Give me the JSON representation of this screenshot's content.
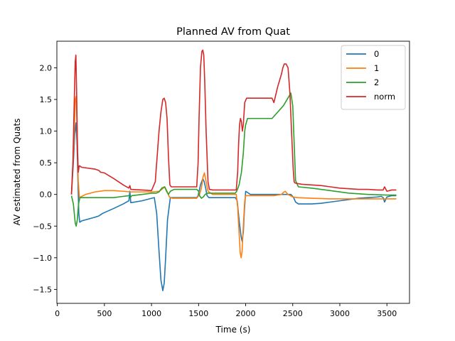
{
  "chart_data": {
    "type": "line",
    "title": "Planned AV from Quat",
    "xlabel": "Time (s)",
    "ylabel": "AV estimated from Quats",
    "xlim": [
      -5,
      3740
    ],
    "ylim": [
      -1.72,
      2.42
    ],
    "xticks": [
      0,
      500,
      1000,
      1500,
      2000,
      2500,
      3000,
      3500
    ],
    "yticks": [
      -1.5,
      -1.0,
      -0.5,
      0.0,
      0.5,
      1.0,
      1.5,
      2.0
    ],
    "xtick_labels": [
      "0",
      "500",
      "1000",
      "1500",
      "2000",
      "2500",
      "3000",
      "3500"
    ],
    "ytick_labels": [
      "−1.5",
      "−1.0",
      "−0.5",
      "0.0",
      "0.5",
      "1.0",
      "1.5",
      "2.0"
    ],
    "grid": false,
    "legend_position": "top-right",
    "series": [
      {
        "name": "0",
        "color": "#1f77b4",
        "x": [
          150,
          170,
          185,
          198,
          208,
          218,
          228,
          238,
          255,
          300,
          400,
          440,
          460,
          480,
          600,
          700,
          760,
          770,
          780,
          900,
          1030,
          1055,
          1080,
          1100,
          1120,
          1135,
          1150,
          1170,
          1200,
          1240,
          1300,
          1420,
          1480,
          1495,
          1520,
          1545,
          1560,
          1575,
          1590,
          1610,
          1700,
          1890,
          1910,
          1930,
          1950,
          1962,
          1975,
          1985,
          2000,
          2050,
          2200,
          2300,
          2400,
          2480,
          2510,
          2530,
          2560,
          2600,
          2700,
          2800,
          2900,
          3000,
          3100,
          3200,
          3300,
          3400,
          3440,
          3460,
          3475,
          3500,
          3550,
          3600
        ],
        "y": [
          0.0,
          0.5,
          0.95,
          1.13,
          0.85,
          0.25,
          -0.3,
          -0.44,
          -0.42,
          -0.4,
          -0.36,
          -0.34,
          -0.32,
          -0.3,
          -0.22,
          -0.15,
          -0.1,
          0.05,
          -0.13,
          -0.1,
          -0.05,
          -0.3,
          -0.9,
          -1.35,
          -1.52,
          -1.4,
          -1.0,
          -0.4,
          -0.05,
          -0.05,
          -0.05,
          -0.05,
          -0.05,
          -0.02,
          0.15,
          0.25,
          0.2,
          0.1,
          -0.02,
          -0.05,
          -0.05,
          -0.05,
          -0.1,
          -0.4,
          -0.65,
          -0.74,
          -0.6,
          -0.3,
          0.05,
          0.0,
          0.0,
          0.0,
          0.0,
          0.0,
          -0.05,
          -0.12,
          -0.15,
          -0.15,
          -0.15,
          -0.14,
          -0.12,
          -0.1,
          -0.08,
          -0.06,
          -0.05,
          -0.04,
          -0.03,
          -0.05,
          -0.12,
          -0.04,
          -0.02,
          -0.02
        ]
      },
      {
        "name": "1",
        "color": "#ff7f0e",
        "x": [
          150,
          175,
          190,
          200,
          212,
          222,
          235,
          260,
          300,
          400,
          500,
          600,
          700,
          780,
          900,
          1000,
          1080,
          1110,
          1140,
          1165,
          1190,
          1220,
          1300,
          1400,
          1480,
          1510,
          1530,
          1548,
          1562,
          1580,
          1600,
          1650,
          1900,
          1915,
          1930,
          1942,
          1952,
          1962,
          1975,
          1990,
          2000,
          2100,
          2300,
          2380,
          2400,
          2420,
          2450,
          2500,
          2550,
          2700,
          2900,
          3100,
          3300,
          3500,
          3600
        ],
        "y": [
          0.0,
          0.8,
          1.5,
          1.55,
          0.9,
          0.2,
          -0.05,
          -0.03,
          0.0,
          0.04,
          0.06,
          0.06,
          0.05,
          0.04,
          0.04,
          0.04,
          0.05,
          0.08,
          0.12,
          0.05,
          -0.04,
          -0.06,
          -0.06,
          -0.06,
          -0.06,
          0.0,
          0.1,
          0.28,
          0.34,
          0.2,
          0.05,
          0.0,
          0.0,
          -0.2,
          -0.6,
          -0.92,
          -1.0,
          -0.9,
          -0.5,
          -0.1,
          -0.02,
          -0.02,
          -0.02,
          0.0,
          0.03,
          0.05,
          0.0,
          -0.04,
          -0.05,
          -0.06,
          -0.07,
          -0.07,
          -0.07,
          -0.07,
          -0.07
        ]
      },
      {
        "name": "2",
        "color": "#2ca02c",
        "x": [
          150,
          170,
          190,
          200,
          212,
          225,
          240,
          300,
          400,
          600,
          700,
          760,
          775,
          790,
          900,
          1000,
          1050,
          1080,
          1110,
          1140,
          1160,
          1180,
          1200,
          1240,
          1400,
          1480,
          1500,
          1510,
          1530,
          1550,
          1570,
          1590,
          1610,
          1650,
          1700,
          1890,
          1905,
          1930,
          1955,
          1975,
          1990,
          2000,
          2020,
          2100,
          2280,
          2400,
          2480,
          2500,
          2530,
          2560,
          2700,
          2900,
          3100,
          3300,
          3500,
          3600
        ],
        "y": [
          -0.02,
          -0.15,
          -0.45,
          -0.5,
          -0.4,
          -0.15,
          -0.05,
          -0.05,
          -0.05,
          -0.05,
          -0.03,
          -0.02,
          -0.05,
          -0.02,
          0.0,
          0.02,
          0.02,
          0.04,
          0.1,
          0.12,
          0.05,
          0.0,
          0.05,
          0.08,
          0.08,
          0.08,
          0.05,
          -0.02,
          -0.06,
          -0.04,
          0.0,
          0.02,
          0.02,
          0.02,
          0.02,
          0.02,
          0.05,
          0.15,
          0.35,
          0.65,
          1.0,
          1.1,
          1.2,
          1.2,
          1.2,
          1.4,
          1.6,
          1.4,
          0.22,
          0.12,
          0.1,
          0.06,
          0.02,
          0.0,
          -0.01,
          -0.01
        ]
      },
      {
        "name": "norm",
        "color": "#d62728",
        "x": [
          150,
          165,
          180,
          190,
          197,
          205,
          213,
          222,
          232,
          240,
          255,
          300,
          400,
          440,
          460,
          500,
          600,
          700,
          760,
          770,
          780,
          900,
          1000,
          1040,
          1060,
          1080,
          1100,
          1120,
          1135,
          1150,
          1165,
          1180,
          1195,
          1210,
          1240,
          1300,
          1420,
          1480,
          1495,
          1505,
          1520,
          1535,
          1545,
          1555,
          1565,
          1580,
          1600,
          1615,
          1650,
          1900,
          1915,
          1925,
          1935,
          1945,
          1955,
          1965,
          1975,
          1990,
          2010,
          2040,
          2100,
          2200,
          2280,
          2300,
          2340,
          2360,
          2380,
          2395,
          2410,
          2430,
          2450,
          2470,
          2490,
          2505,
          2515,
          2525,
          2560,
          2600,
          2700,
          2800,
          2900,
          3000,
          3100,
          3200,
          3300,
          3400,
          3440,
          3460,
          3475,
          3500,
          3550,
          3600
        ],
        "y": [
          0.0,
          0.5,
          1.5,
          2.1,
          2.2,
          1.6,
          0.8,
          0.35,
          0.45,
          0.45,
          0.43,
          0.42,
          0.4,
          0.38,
          0.35,
          0.34,
          0.25,
          0.15,
          0.1,
          0.14,
          0.08,
          0.07,
          0.06,
          0.2,
          0.6,
          1.0,
          1.3,
          1.5,
          1.52,
          1.45,
          1.2,
          0.6,
          0.15,
          0.12,
          0.12,
          0.12,
          0.12,
          0.12,
          0.5,
          1.2,
          2.0,
          2.26,
          2.28,
          2.2,
          1.8,
          1.0,
          0.2,
          0.08,
          0.07,
          0.07,
          0.35,
          0.8,
          1.1,
          1.2,
          1.15,
          1.0,
          1.1,
          1.45,
          1.52,
          1.52,
          1.52,
          1.52,
          1.52,
          1.45,
          1.7,
          1.8,
          1.9,
          2.0,
          2.06,
          2.06,
          2.0,
          1.6,
          0.9,
          0.4,
          0.2,
          0.18,
          0.17,
          0.16,
          0.15,
          0.14,
          0.12,
          0.1,
          0.09,
          0.08,
          0.08,
          0.07,
          0.07,
          0.07,
          0.12,
          0.05,
          0.07,
          0.07
        ]
      }
    ]
  }
}
